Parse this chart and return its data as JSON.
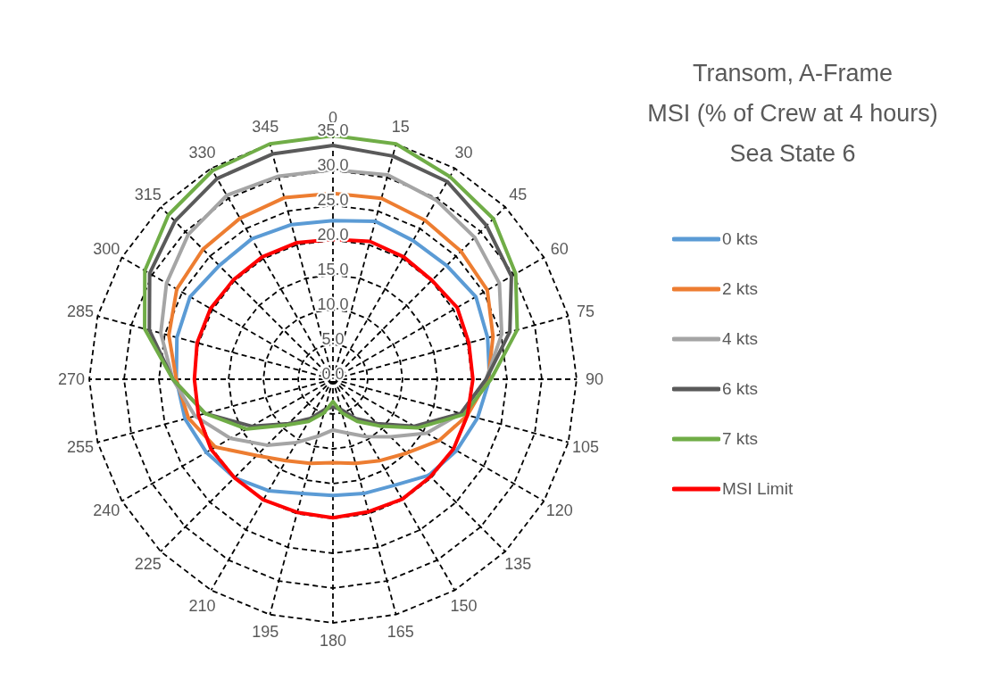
{
  "chart_data": {
    "type": "radar",
    "title": "Transom, A-Frame\nMSI (% of Crew at 4 hours)\nSea State 6",
    "categories": [
      "0",
      "15",
      "30",
      "45",
      "60",
      "75",
      "90",
      "105",
      "120",
      "135",
      "150",
      "165",
      "180",
      "195",
      "210",
      "225",
      "240",
      "255",
      "270",
      "285",
      "300",
      "315",
      "330",
      "345"
    ],
    "series": [
      {
        "name": "0 kts",
        "color": "#5b9bd5",
        "values": [
          22.8,
          23.5,
          23,
          23.1,
          23.7,
          23,
          22.5,
          21.5,
          20.5,
          19.5,
          17.6,
          17,
          16.7,
          17,
          18.5,
          20,
          21,
          22,
          22.5,
          23.2,
          23.7,
          23.1,
          23.3,
          23
        ]
      },
      {
        "name": "2 kts",
        "color": "#ed7d31",
        "values": [
          26.7,
          26.9,
          26.4,
          26,
          25.6,
          23.8,
          22.3,
          20,
          17.6,
          15,
          13.5,
          12.5,
          12,
          12.5,
          13.5,
          15.5,
          19.5,
          21.5,
          22.5,
          24.4,
          25.9,
          26.4,
          26.7,
          27
        ]
      },
      {
        "name": "4 kts",
        "color": "#a5a5a5",
        "values": [
          30.1,
          30.4,
          29.7,
          28.8,
          27.6,
          25.1,
          22,
          19,
          15.5,
          11.7,
          9.5,
          8,
          7.3,
          8.5,
          10.5,
          13.4,
          17,
          20.5,
          23,
          25.6,
          27.6,
          29.4,
          30.5,
          30.2
        ]
      },
      {
        "name": "6 kts",
        "color": "#5a5a5a",
        "values": [
          33.6,
          33.2,
          32.8,
          31.2,
          29.6,
          26.3,
          22,
          19,
          13.5,
          9,
          6.5,
          4.5,
          4,
          4.5,
          6.5,
          9,
          13.5,
          19,
          23,
          27.3,
          30.4,
          32.1,
          33.3,
          33.5
        ]
      },
      {
        "name": "7 kts",
        "color": "#70ad47",
        "values": [
          35,
          35,
          33.6,
          32.6,
          30.3,
          27.4,
          22.7,
          19.5,
          14,
          9.5,
          7,
          5,
          3.2,
          5,
          7,
          9.3,
          14.3,
          19,
          23,
          28,
          31.2,
          33.4,
          34.6,
          35
        ]
      },
      {
        "name": "MSI Limit",
        "color": "#ff0000",
        "values": [
          20.1,
          20.5,
          20.3,
          20.1,
          20.6,
          20.2,
          20.1,
          20,
          20,
          19.8,
          19.9,
          19.7,
          19.9,
          19.8,
          20,
          20,
          20.2,
          20,
          19.9,
          20.2,
          20.3,
          20.2,
          20.3,
          20.3
        ]
      }
    ],
    "ylim": [
      0,
      35
    ],
    "yticks": [
      {
        "value": 0,
        "label": "0.0"
      },
      {
        "value": 5,
        "label": "5.0"
      },
      {
        "value": 10,
        "label": "10.0"
      },
      {
        "value": 15,
        "label": "15.0"
      },
      {
        "value": 20,
        "label": "20.0"
      },
      {
        "value": 25,
        "label": "25.0"
      },
      {
        "value": 30,
        "label": "30.0"
      },
      {
        "value": 35,
        "label": "35.0"
      }
    ],
    "grid": true,
    "legend": "right",
    "marker": "none",
    "line_style": "solid"
  }
}
